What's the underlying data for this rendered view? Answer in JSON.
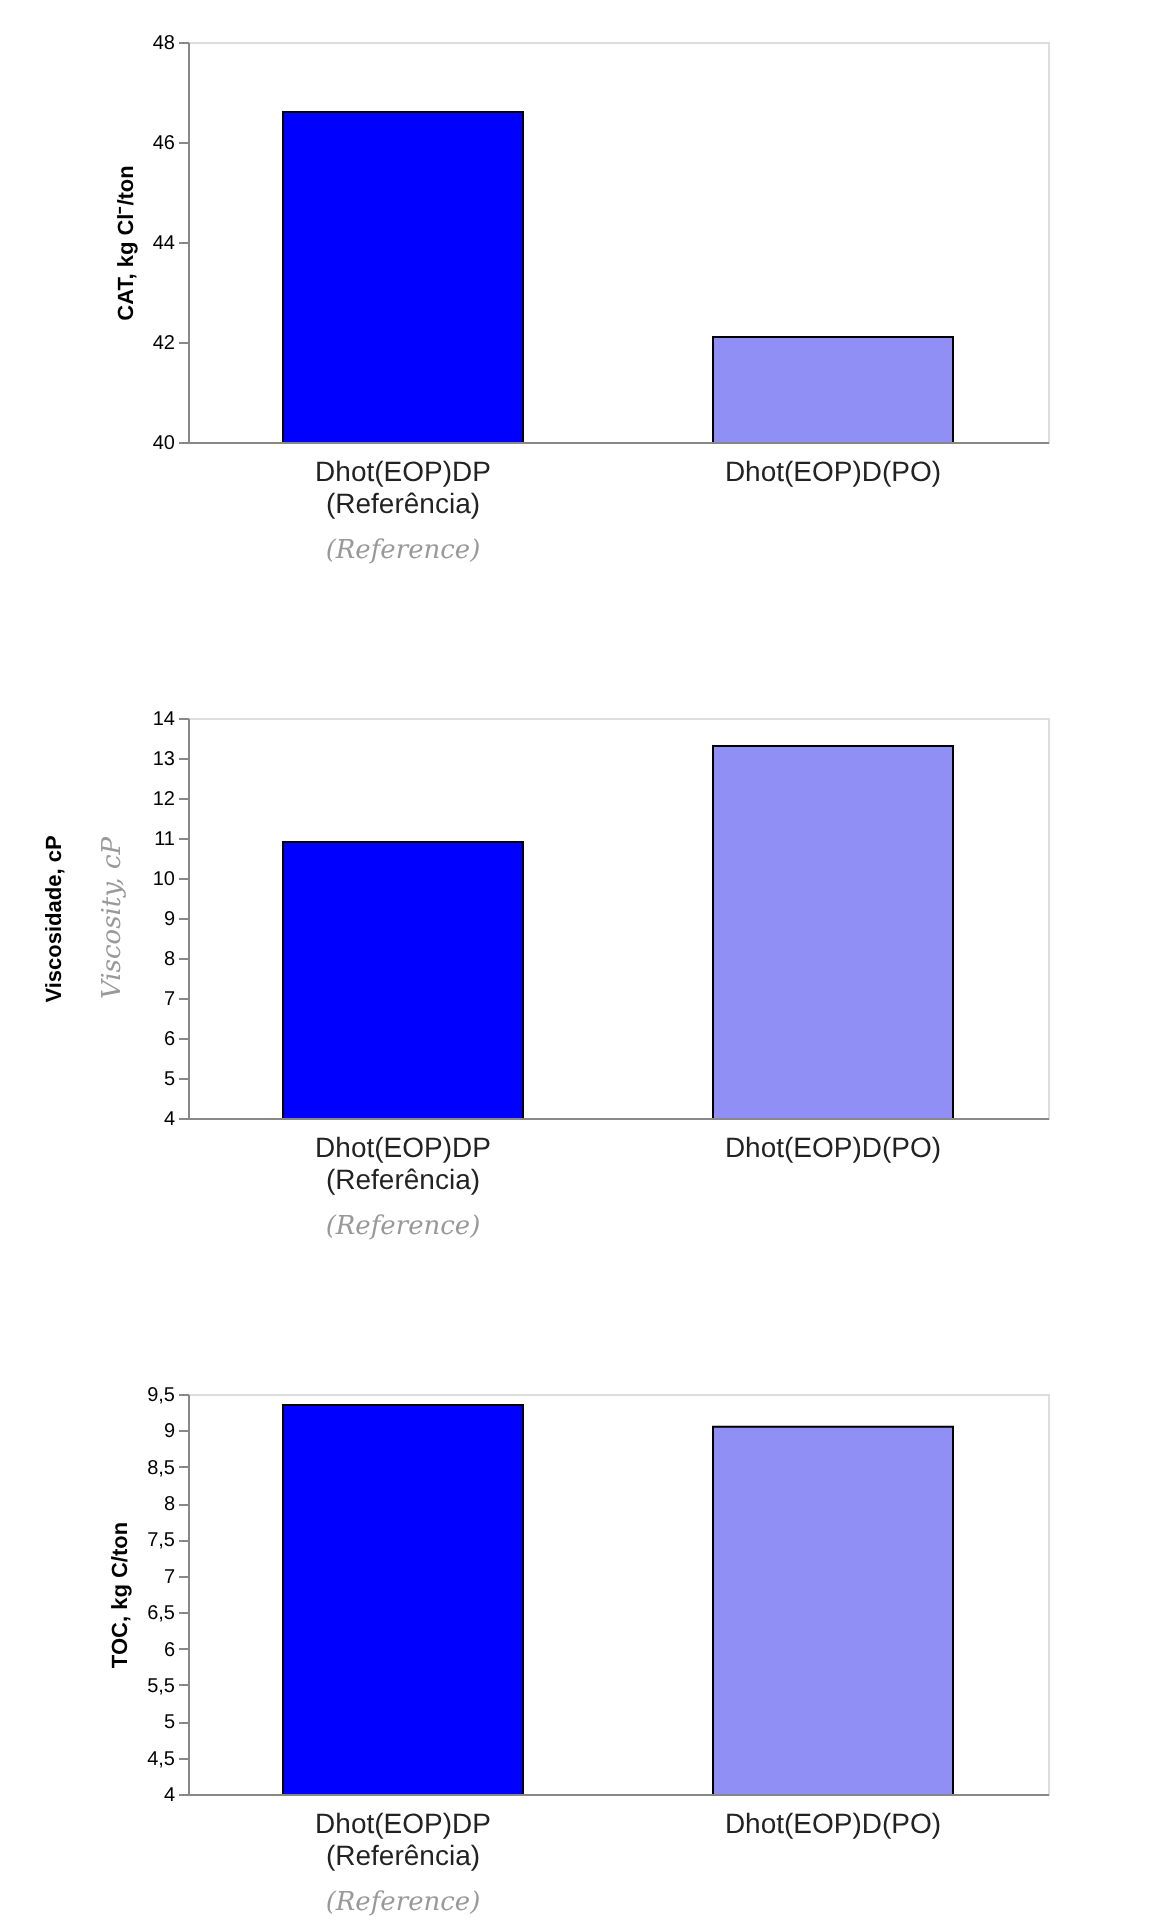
{
  "chart_data": [
    {
      "type": "bar",
      "categories": [
        "Dhot(EOP)DP\n(Referência)",
        "Dhot(EOP)D(PO)"
      ],
      "values": [
        46.6,
        42.1
      ],
      "colors": [
        "#0000ff",
        "#8f8ff5"
      ],
      "ylabel": "CAT, kg Cl⁻/ton",
      "ylim": [
        40,
        48
      ],
      "yticks": [
        40,
        42,
        44,
        46,
        48
      ],
      "annotations": [
        "(Reference)"
      ]
    },
    {
      "type": "bar",
      "categories": [
        "Dhot(EOP)DP\n(Referência)",
        "Dhot(EOP)D(PO)"
      ],
      "values": [
        10.9,
        13.3
      ],
      "colors": [
        "#0000ff",
        "#8f8ff5"
      ],
      "ylabel": "Viscosidade, cP",
      "ylim": [
        4,
        14
      ],
      "yticks": [
        4,
        5,
        6,
        7,
        8,
        9,
        10,
        11,
        12,
        13,
        14
      ],
      "annotations": [
        "Viscosity, cP",
        "(Reference)"
      ]
    },
    {
      "type": "bar",
      "categories": [
        "Dhot(EOP)DP\n(Referência)",
        "Dhot(EOP)D(PO)"
      ],
      "values": [
        9.35,
        9.05
      ],
      "colors": [
        "#0000ff",
        "#8f8ff5"
      ],
      "ylabel": "TOC, kg C/ton",
      "ylim": [
        4,
        9.5
      ],
      "yticks": [
        4,
        {
          "value": 4.5,
          "label": "4,5"
        },
        5,
        {
          "value": 5.5,
          "label": "5,5"
        },
        6,
        {
          "value": 6.5,
          "label": "6,5"
        },
        7,
        {
          "value": 7.5,
          "label": "7,5"
        },
        8,
        {
          "value": 8.5,
          "label": "8,5"
        },
        9,
        {
          "value": 9.5,
          "label": "9,5"
        }
      ],
      "annotations": [
        "(Reference)"
      ]
    }
  ]
}
